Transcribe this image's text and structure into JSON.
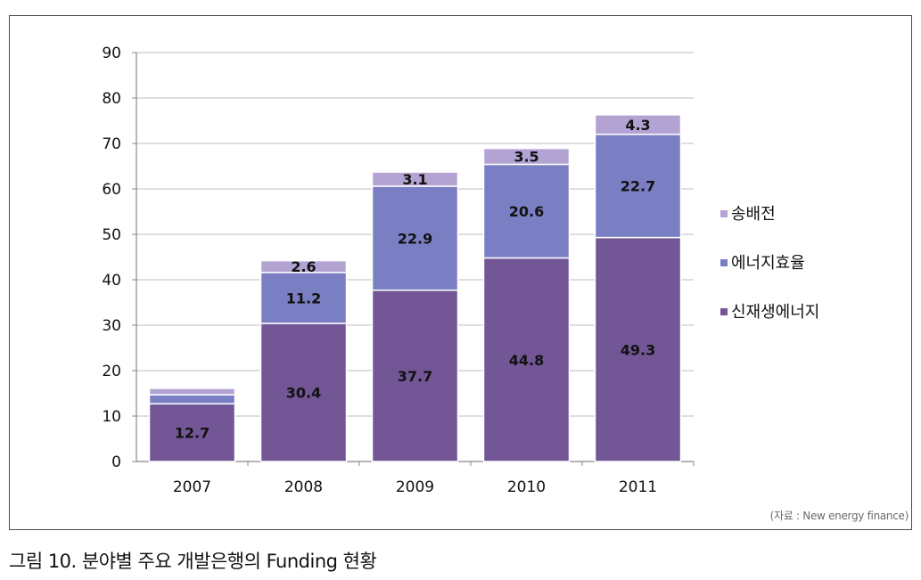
{
  "chart_data": {
    "type": "bar",
    "stacked": true,
    "categories": [
      "2007",
      "2008",
      "2009",
      "2010",
      "2011"
    ],
    "series": [
      {
        "name": "신재생에너지",
        "values": [
          12.7,
          30.4,
          37.7,
          44.8,
          49.3
        ],
        "color": "#735696",
        "labels": [
          "12.7",
          "30.4",
          "37.7",
          "44.8",
          "49.3"
        ]
      },
      {
        "name": "에너지효율",
        "values": [
          2.0,
          11.2,
          22.9,
          20.6,
          22.7
        ],
        "color": "#7a7fc4",
        "labels": [
          "",
          "11.2",
          "22.9",
          "20.6",
          "22.7"
        ]
      },
      {
        "name": "송배전",
        "values": [
          1.4,
          2.6,
          3.1,
          3.5,
          4.3
        ],
        "color": "#b3a3d3",
        "labels": [
          "",
          "2.6",
          "3.1",
          "3.5",
          "4.3"
        ]
      }
    ],
    "ylim": [
      0,
      90
    ],
    "yticks": [
      "0",
      "10",
      "20",
      "30",
      "40",
      "50",
      "60",
      "70",
      "80",
      "90"
    ],
    "grid": true,
    "legend": "right"
  },
  "source": "(자료 : New energy finance)",
  "caption": "그림 10. 분야별 주요 개발은행의 Funding 현황"
}
